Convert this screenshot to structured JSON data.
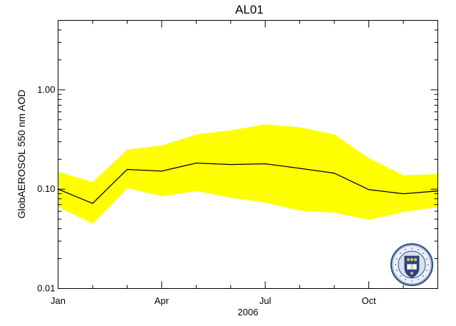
{
  "chart_data": {
    "type": "area",
    "title": "AL01",
    "xlabel": "2006",
    "ylabel": "GlobAEROSOL 550 nm AOD",
    "yscale": "log",
    "ylim": [
      0.01,
      5.0
    ],
    "xlim": [
      1,
      12
    ],
    "x_ticks": [
      {
        "x": 1,
        "label": "Jan"
      },
      {
        "x": 4,
        "label": "Apr"
      },
      {
        "x": 7,
        "label": "Jul"
      },
      {
        "x": 10,
        "label": "Oct"
      }
    ],
    "y_ticks": [
      {
        "y": 0.01,
        "label": "0.01"
      },
      {
        "y": 0.1,
        "label": "0.10"
      },
      {
        "y": 1.0,
        "label": "1.00"
      }
    ],
    "x": [
      1,
      2,
      3,
      4,
      5,
      6,
      7,
      8,
      9,
      10,
      11,
      12
    ],
    "series": [
      {
        "values": [
          0.1,
          0.072,
          0.158,
          0.152,
          0.183,
          0.177,
          0.18,
          0.162,
          0.145,
          0.099,
          0.09,
          0.096
        ],
        "color": "#000000"
      }
    ],
    "band": {
      "upper": [
        0.15,
        0.118,
        0.25,
        0.275,
        0.355,
        0.39,
        0.45,
        0.42,
        0.355,
        0.205,
        0.138,
        0.142
      ],
      "lower": [
        0.066,
        0.045,
        0.102,
        0.085,
        0.096,
        0.082,
        0.073,
        0.061,
        0.058,
        0.049,
        0.059,
        0.066
      ],
      "color": "#ffff00"
    },
    "grid": false,
    "logo": {
      "text": "UNIVERSITY OF OXFORD",
      "position": "bottom-right"
    }
  }
}
